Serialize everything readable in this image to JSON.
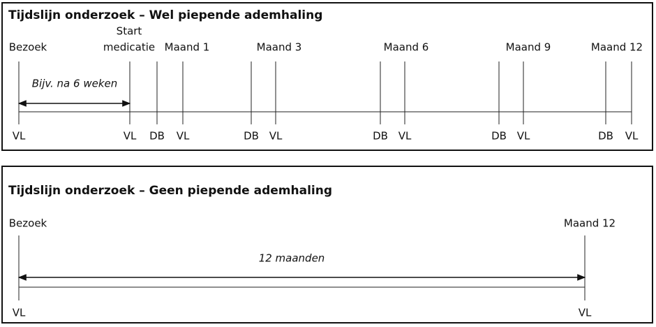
{
  "panels": [
    {
      "title": "Tijdslijn onderzoek – Wel piepende ademhaling",
      "top_labels": [
        "Bezoek",
        "Start",
        "medicatie",
        "Maand 1",
        "Maand 3",
        "Maand 6",
        "Maand 9",
        "Maand 12"
      ],
      "span_label": "Bijv. na 6 weken",
      "bottom_labels": [
        "VL",
        "VL",
        "DB",
        "VL",
        "DB",
        "VL",
        "DB",
        "VL",
        "DB",
        "VL",
        "DB",
        "VL"
      ]
    },
    {
      "title": "Tijdslijn onderzoek – Geen piepende ademhaling",
      "top_labels": [
        "Bezoek",
        "Maand 12"
      ],
      "span_label": "12 maanden",
      "bottom_labels": [
        "VL",
        "VL"
      ]
    }
  ]
}
